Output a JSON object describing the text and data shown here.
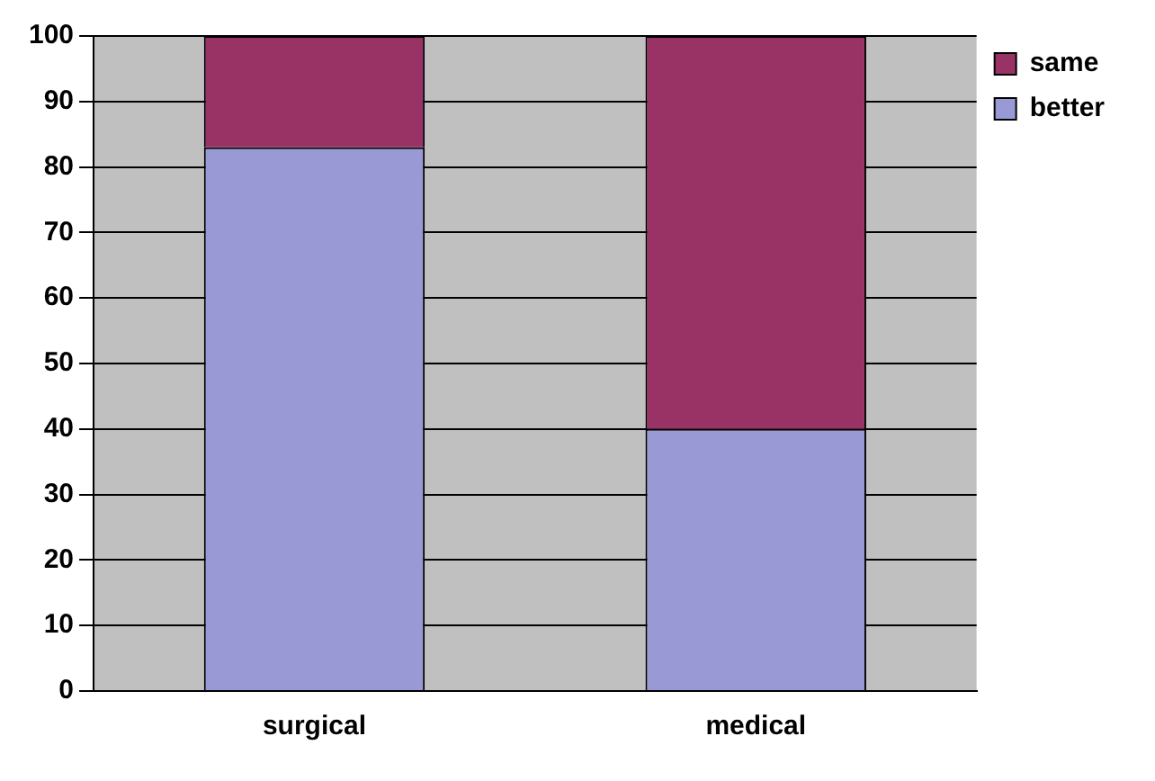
{
  "chart_data": {
    "type": "bar",
    "stacked": true,
    "categories": [
      "surgical",
      "medical"
    ],
    "series": [
      {
        "name": "better",
        "color": "#9999d6",
        "values": [
          83,
          40
        ]
      },
      {
        "name": "same",
        "color": "#993366",
        "values": [
          17,
          60
        ]
      }
    ],
    "ylim": [
      0,
      100
    ],
    "yticks": [
      0,
      10,
      20,
      30,
      40,
      50,
      60,
      70,
      80,
      90,
      100
    ],
    "grid": "y",
    "legend": "right"
  }
}
